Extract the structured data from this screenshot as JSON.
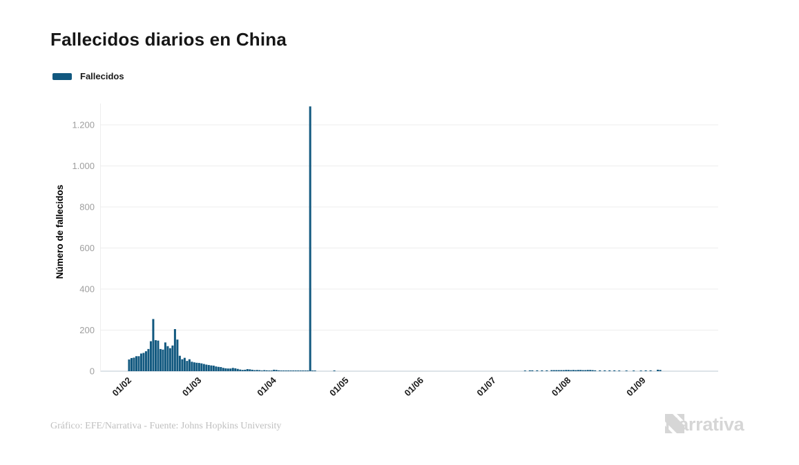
{
  "header": {
    "title": "Fallecidos diarios en China"
  },
  "chart_data": {
    "type": "bar",
    "title": "Fallecidos diarios en China",
    "xlabel": "",
    "ylabel": "Número de fallecidos",
    "bar_color": "#11587f",
    "grid": "horizontal",
    "legend_position": "top-left",
    "ylim": [
      0,
      1330
    ],
    "x_domain": [
      "2020-01-20",
      "2020-10-02"
    ],
    "y_ticks": [
      {
        "value": 0,
        "label": "0"
      },
      {
        "value": 200,
        "label": "200"
      },
      {
        "value": 400,
        "label": "400"
      },
      {
        "value": 600,
        "label": "600"
      },
      {
        "value": 800,
        "label": "800"
      },
      {
        "value": 1000,
        "label": "1.000"
      },
      {
        "value": 1200,
        "label": "1.200"
      }
    ],
    "x_ticks": [
      {
        "date": "2020-02-01",
        "label": "01/02"
      },
      {
        "date": "2020-03-01",
        "label": "01/03"
      },
      {
        "date": "2020-04-01",
        "label": "01/04"
      },
      {
        "date": "2020-05-01",
        "label": "01/05"
      },
      {
        "date": "2020-06-01",
        "label": "01/06"
      },
      {
        "date": "2020-07-01",
        "label": "01/07"
      },
      {
        "date": "2020-08-01",
        "label": "01/08"
      },
      {
        "date": "2020-09-01",
        "label": "01/09"
      }
    ],
    "series": [
      {
        "name": "Fallecidos",
        "points": [
          [
            "2020-02-01",
            57
          ],
          [
            "2020-02-02",
            64
          ],
          [
            "2020-02-03",
            66
          ],
          [
            "2020-02-04",
            73
          ],
          [
            "2020-02-05",
            73
          ],
          [
            "2020-02-06",
            86
          ],
          [
            "2020-02-07",
            89
          ],
          [
            "2020-02-08",
            97
          ],
          [
            "2020-02-09",
            108
          ],
          [
            "2020-02-10",
            146
          ],
          [
            "2020-02-11",
            254
          ],
          [
            "2020-02-12",
            151
          ],
          [
            "2020-02-13",
            149
          ],
          [
            "2020-02-14",
            108
          ],
          [
            "2020-02-15",
            105
          ],
          [
            "2020-02-16",
            140
          ],
          [
            "2020-02-17",
            122
          ],
          [
            "2020-02-18",
            112
          ],
          [
            "2020-02-19",
            125
          ],
          [
            "2020-02-20",
            205
          ],
          [
            "2020-02-21",
            154
          ],
          [
            "2020-02-22",
            75
          ],
          [
            "2020-02-23",
            58
          ],
          [
            "2020-02-24",
            65
          ],
          [
            "2020-02-25",
            50
          ],
          [
            "2020-02-26",
            58
          ],
          [
            "2020-02-27",
            46
          ],
          [
            "2020-02-28",
            43
          ],
          [
            "2020-02-29",
            41
          ],
          [
            "2020-03-01",
            40
          ],
          [
            "2020-03-02",
            38
          ],
          [
            "2020-03-03",
            35
          ],
          [
            "2020-03-04",
            32
          ],
          [
            "2020-03-05",
            30
          ],
          [
            "2020-03-06",
            28
          ],
          [
            "2020-03-07",
            27
          ],
          [
            "2020-03-08",
            23
          ],
          [
            "2020-03-09",
            21
          ],
          [
            "2020-03-10",
            20
          ],
          [
            "2020-03-11",
            16
          ],
          [
            "2020-03-12",
            14
          ],
          [
            "2020-03-13",
            13
          ],
          [
            "2020-03-14",
            13
          ],
          [
            "2020-03-15",
            16
          ],
          [
            "2020-03-16",
            14
          ],
          [
            "2020-03-17",
            11
          ],
          [
            "2020-03-18",
            8
          ],
          [
            "2020-03-19",
            6
          ],
          [
            "2020-03-20",
            7
          ],
          [
            "2020-03-21",
            10
          ],
          [
            "2020-03-22",
            9
          ],
          [
            "2020-03-23",
            7
          ],
          [
            "2020-03-24",
            5
          ],
          [
            "2020-03-25",
            6
          ],
          [
            "2020-03-26",
            5
          ],
          [
            "2020-03-27",
            3
          ],
          [
            "2020-03-28",
            5
          ],
          [
            "2020-03-29",
            4
          ],
          [
            "2020-03-30",
            3
          ],
          [
            "2020-03-31",
            2
          ],
          [
            "2020-04-01",
            7
          ],
          [
            "2020-04-02",
            6
          ],
          [
            "2020-04-03",
            4
          ],
          [
            "2020-04-04",
            3
          ],
          [
            "2020-04-05",
            2
          ],
          [
            "2020-04-06",
            2
          ],
          [
            "2020-04-07",
            1
          ],
          [
            "2020-04-08",
            2
          ],
          [
            "2020-04-09",
            1
          ],
          [
            "2020-04-10",
            2
          ],
          [
            "2020-04-11",
            1
          ],
          [
            "2020-04-12",
            1
          ],
          [
            "2020-04-13",
            1
          ],
          [
            "2020-04-14",
            2
          ],
          [
            "2020-04-15",
            1
          ],
          [
            "2020-04-16",
            1290
          ],
          [
            "2020-04-17",
            1
          ],
          [
            "2020-04-18",
            1
          ],
          [
            "2020-04-26",
            1
          ],
          [
            "2020-07-14",
            3
          ],
          [
            "2020-07-16",
            4
          ],
          [
            "2020-07-17",
            4
          ],
          [
            "2020-07-19",
            4
          ],
          [
            "2020-07-21",
            4
          ],
          [
            "2020-07-23",
            4
          ],
          [
            "2020-07-25",
            5
          ],
          [
            "2020-07-26",
            5
          ],
          [
            "2020-07-27",
            5
          ],
          [
            "2020-07-28",
            5
          ],
          [
            "2020-07-29",
            5
          ],
          [
            "2020-07-30",
            5
          ],
          [
            "2020-07-31",
            6
          ],
          [
            "2020-08-01",
            6
          ],
          [
            "2020-08-02",
            5
          ],
          [
            "2020-08-03",
            6
          ],
          [
            "2020-08-04",
            5
          ],
          [
            "2020-08-05",
            6
          ],
          [
            "2020-08-06",
            6
          ],
          [
            "2020-08-07",
            5
          ],
          [
            "2020-08-08",
            5
          ],
          [
            "2020-08-09",
            6
          ],
          [
            "2020-08-10",
            6
          ],
          [
            "2020-08-11",
            5
          ],
          [
            "2020-08-12",
            4
          ],
          [
            "2020-08-14",
            4
          ],
          [
            "2020-08-16",
            4
          ],
          [
            "2020-08-18",
            4
          ],
          [
            "2020-08-20",
            4
          ],
          [
            "2020-08-22",
            3
          ],
          [
            "2020-08-25",
            3
          ],
          [
            "2020-08-28",
            3
          ],
          [
            "2020-08-31",
            3
          ],
          [
            "2020-09-02",
            4
          ],
          [
            "2020-09-04",
            4
          ],
          [
            "2020-09-07",
            7
          ],
          [
            "2020-09-08",
            6
          ]
        ]
      }
    ]
  },
  "footer": {
    "credit": "Gráfico: EFE/Narrativa - Fuente: Johns Hopkins University",
    "brand": "Narrativa"
  }
}
